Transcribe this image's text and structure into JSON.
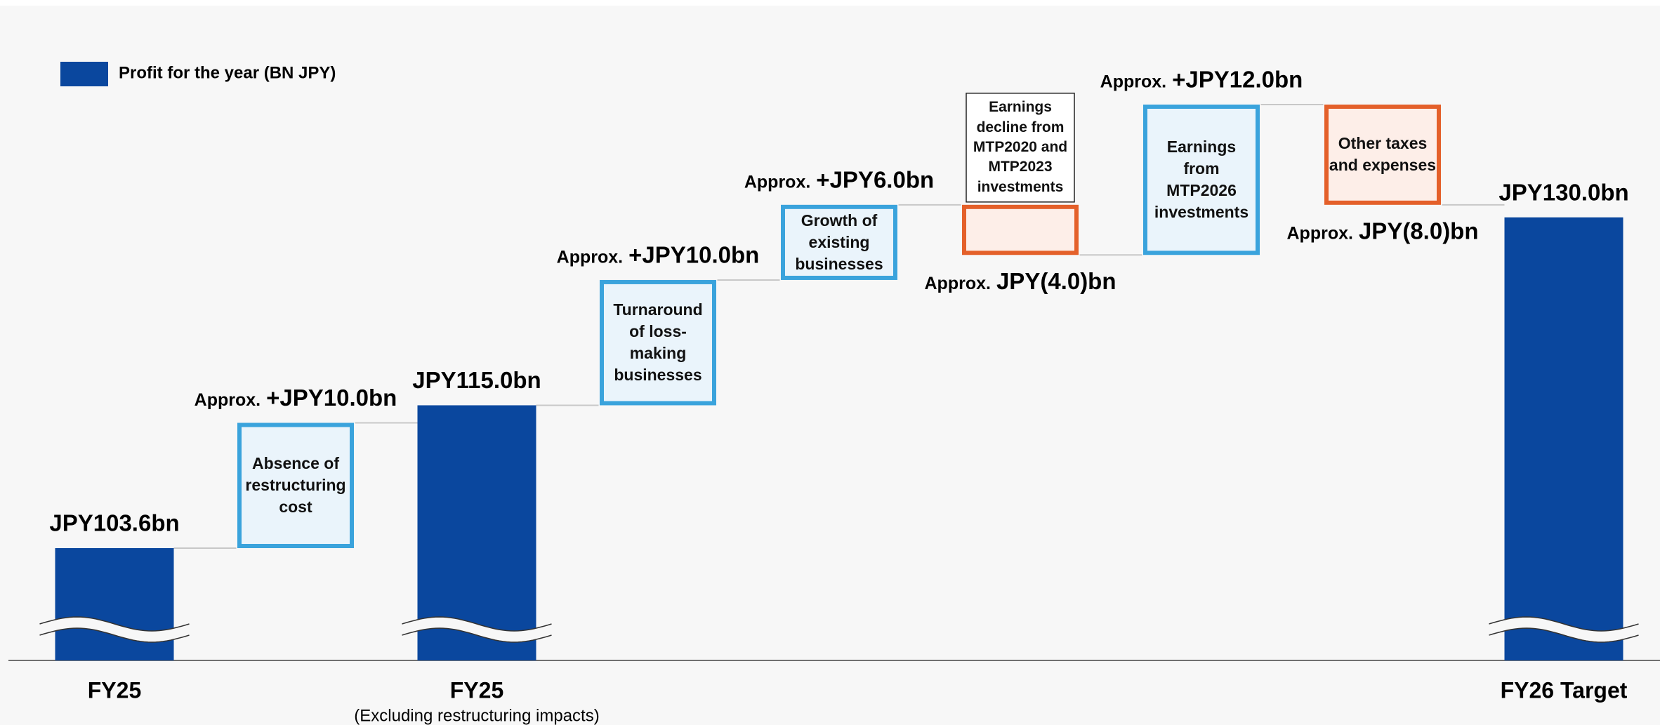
{
  "chart_data": {
    "type": "waterfall",
    "legend_label": "Profit for the year (BN JPY)",
    "categories": [
      "FY25",
      "Absence of restructuring cost",
      "FY25",
      "Turnaround of loss-making businesses",
      "Growth of existing businesses",
      "Earnings decline from MTP2020 and MTP2023 investments",
      "Earnings from MTP2026 investments",
      "Other taxes and expenses",
      "FY26 Target"
    ],
    "category_subtitles": [
      null,
      null,
      "(Excluding restructuring impacts)",
      null,
      null,
      null,
      null,
      null,
      null
    ],
    "measures": [
      "total",
      "relative",
      "total",
      "relative",
      "relative",
      "relative",
      "relative",
      "relative",
      "total"
    ],
    "values": [
      103.6,
      10.0,
      115.0,
      10.0,
      6.0,
      -4.0,
      12.0,
      -8.0,
      130.0
    ],
    "value_labels": [
      "JPY103.6bn",
      "+JPY10.0bn",
      "JPY115.0bn",
      "+JPY10.0bn",
      "+JPY6.0bn",
      "JPY(4.0)bn",
      "+JPY12.0bn",
      "JPY(8.0)bn",
      "JPY130.0bn"
    ],
    "value_label_prefixes": [
      null,
      "Approx.",
      null,
      "Approx.",
      "Approx.",
      "Approx.",
      "Approx.",
      "Approx.",
      null
    ],
    "colors": {
      "total": "#0a479e",
      "increase": "#3aa3dc",
      "decrease": "#e4602a"
    },
    "broken_axis": true
  }
}
